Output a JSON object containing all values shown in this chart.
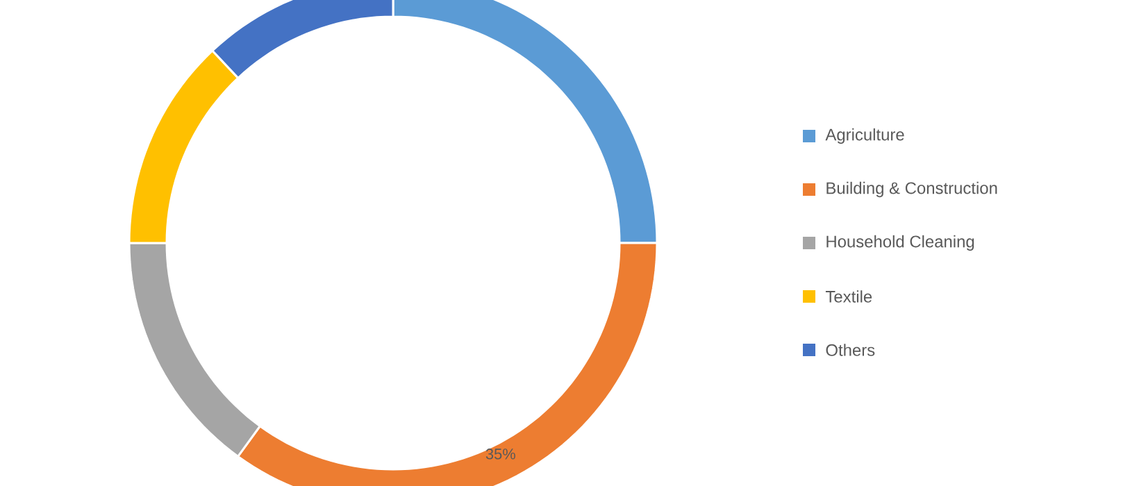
{
  "chart_data": {
    "type": "donut",
    "categories": [
      "Agriculture",
      "Building & Construction",
      "Household Cleaning",
      "Textile",
      "Others"
    ],
    "values": [
      25,
      35,
      15,
      13,
      12
    ],
    "colors": [
      "#5b9bd5",
      "#ed7d31",
      "#a5a5a5",
      "#ffc000",
      "#4472c4"
    ],
    "value_labels": [
      null,
      "35%",
      null,
      null,
      null
    ],
    "legend": "right"
  }
}
